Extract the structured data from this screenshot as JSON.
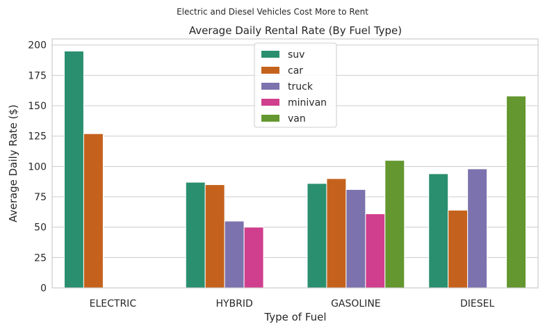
{
  "chart_data": {
    "type": "bar",
    "suptitle": "Electric and Diesel Vehicles Cost More to Rent",
    "title": "Average Daily Rental Rate (By Fuel Type)",
    "xlabel": "Type of Fuel",
    "ylabel": "Average Daily Rate ($)",
    "categories": [
      "ELECTRIC",
      "HYBRID",
      "GASOLINE",
      "DIESEL"
    ],
    "ylim": [
      0,
      205
    ],
    "yticks": [
      0,
      25,
      50,
      75,
      100,
      125,
      150,
      175,
      200
    ],
    "grid": "horizontal",
    "legend_position": "top-center",
    "series": [
      {
        "name": "suv",
        "color": "#2a8f6f",
        "values": [
          195,
          87,
          86,
          94
        ]
      },
      {
        "name": "car",
        "color": "#c4621d",
        "values": [
          127,
          85,
          90,
          64
        ]
      },
      {
        "name": "truck",
        "color": "#7b72ae",
        "values": [
          null,
          55,
          81,
          98
        ]
      },
      {
        "name": "minivan",
        "color": "#d03f8d",
        "values": [
          null,
          50,
          61,
          null
        ]
      },
      {
        "name": "van",
        "color": "#64972f",
        "values": [
          null,
          null,
          105,
          158
        ]
      }
    ]
  }
}
